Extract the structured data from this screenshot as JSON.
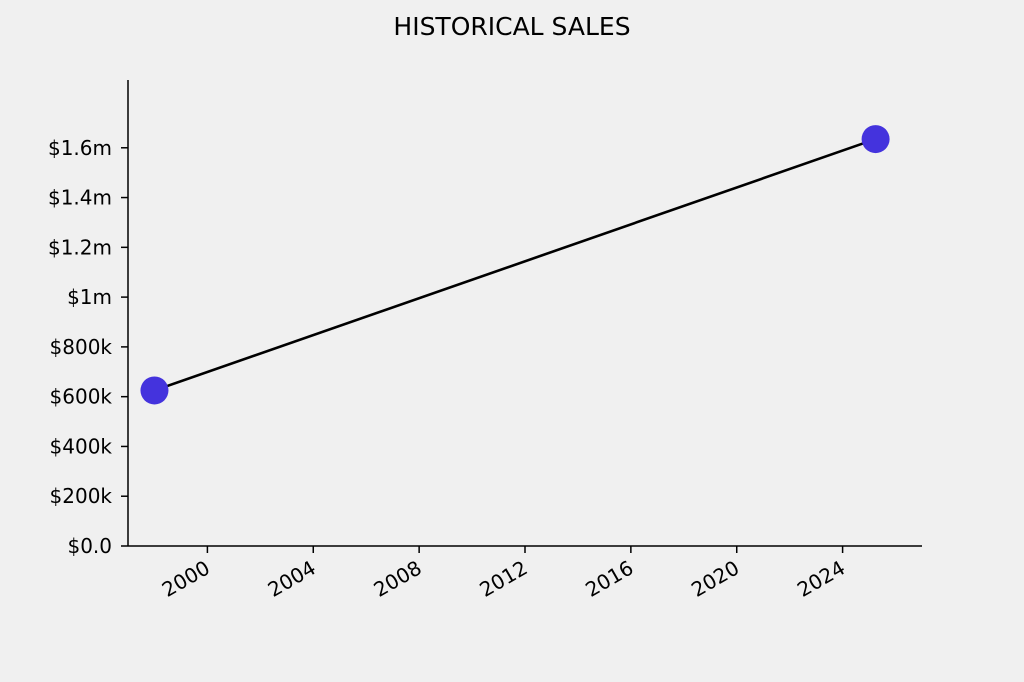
{
  "chart_data": {
    "type": "line",
    "title": "HISTORICAL SALES",
    "xlabel": "",
    "ylabel": "",
    "x": [
      "1998-01-01",
      "2025-04-01"
    ],
    "series": [
      {
        "values": [
          625000,
          1635000
        ],
        "marker_color": "#4433dd",
        "line_color": "#000000"
      }
    ],
    "xlim": [
      "1997-01-01",
      "2027-01-01"
    ],
    "ylim": [
      0,
      1800000
    ],
    "x_ticks": [
      {
        "value": "2000-01-01",
        "label": "2000"
      },
      {
        "value": "2004-01-01",
        "label": "2004"
      },
      {
        "value": "2008-01-01",
        "label": "2008"
      },
      {
        "value": "2012-01-01",
        "label": "2012"
      },
      {
        "value": "2016-01-01",
        "label": "2016"
      },
      {
        "value": "2020-01-01",
        "label": "2020"
      },
      {
        "value": "2024-01-01",
        "label": "2024"
      }
    ],
    "y_ticks": [
      {
        "value": 0,
        "label": "$0.0"
      },
      {
        "value": 200000,
        "label": "$200k"
      },
      {
        "value": 400000,
        "label": "$400k"
      },
      {
        "value": 600000,
        "label": "$600k"
      },
      {
        "value": 800000,
        "label": "$800k"
      },
      {
        "value": 1000000,
        "label": "$1m"
      },
      {
        "value": 1200000,
        "label": "$1.2m"
      },
      {
        "value": 1400000,
        "label": "$1.4m"
      },
      {
        "value": 1600000,
        "label": "$1.6m"
      }
    ],
    "grid": false,
    "legend": "none"
  }
}
